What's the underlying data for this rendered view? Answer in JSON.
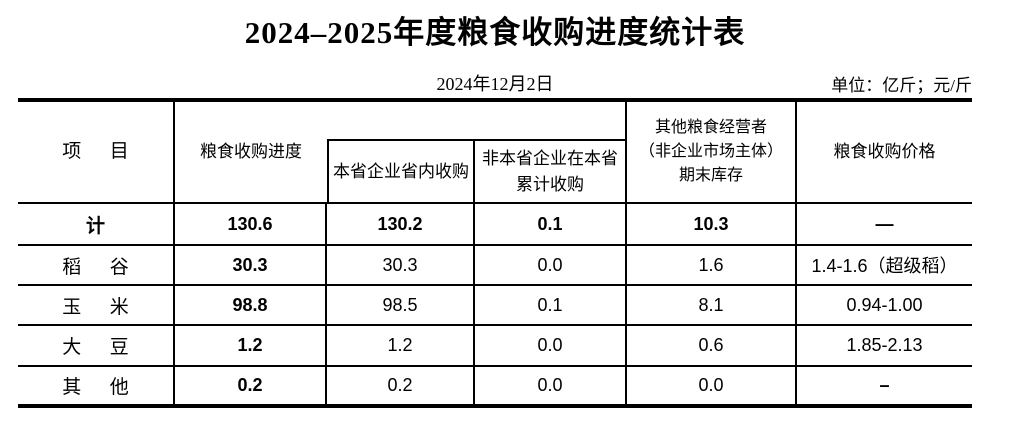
{
  "title": "2024–2025年度粮食收购进度统计表",
  "meta": {
    "date": "2024年12月2日",
    "unit": "单位：亿斤；元/斤"
  },
  "table": {
    "header": {
      "item": "项      目",
      "progress": "粮食收购进度",
      "provincial_purchase": "本省企业省内收购",
      "non_provincial_purchase": "非本省企业在本省\n累计收购",
      "other_traders_stock": "其他粮食经营者\n（非企业市场主体）\n期末库存",
      "price": "粮食收购价格"
    },
    "rows": [
      {
        "label": "计",
        "progress": "130.6",
        "provincial": "130.2",
        "non_provincial": "0.1",
        "other_stock": "10.3",
        "price": "—"
      },
      {
        "label": "稻      谷",
        "progress": "30.3",
        "provincial": "30.3",
        "non_provincial": "0.0",
        "other_stock": "1.6",
        "price": "1.4-1.6（超级稻）"
      },
      {
        "label": "玉      米",
        "progress": "98.8",
        "provincial": "98.5",
        "non_provincial": "0.1",
        "other_stock": "8.1",
        "price": "0.94-1.00"
      },
      {
        "label": "大      豆",
        "progress": "1.2",
        "provincial": "1.2",
        "non_provincial": "0.0",
        "other_stock": "0.6",
        "price": "1.85-2.13"
      },
      {
        "label": "其      他",
        "progress": "0.2",
        "provincial": "0.2",
        "non_provincial": "0.0",
        "other_stock": "0.0",
        "price": "–"
      }
    ]
  }
}
